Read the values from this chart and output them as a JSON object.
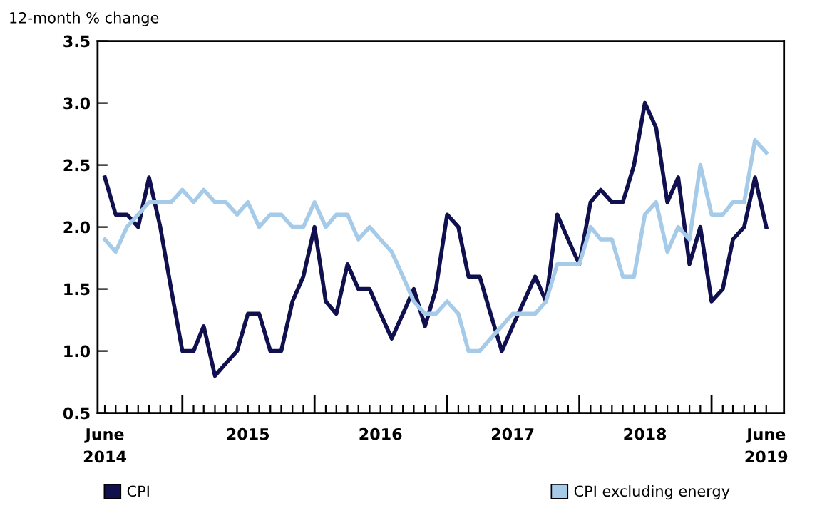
{
  "chart_data": {
    "type": "line",
    "ylabel": "12-month % change",
    "x": [
      "2014-06",
      "2014-07",
      "2014-08",
      "2014-09",
      "2014-10",
      "2014-11",
      "2014-12",
      "2015-01",
      "2015-02",
      "2015-03",
      "2015-04",
      "2015-05",
      "2015-06",
      "2015-07",
      "2015-08",
      "2015-09",
      "2015-10",
      "2015-11",
      "2015-12",
      "2016-01",
      "2016-02",
      "2016-03",
      "2016-04",
      "2016-05",
      "2016-06",
      "2016-07",
      "2016-08",
      "2016-09",
      "2016-10",
      "2016-11",
      "2016-12",
      "2017-01",
      "2017-02",
      "2017-03",
      "2017-04",
      "2017-05",
      "2017-06",
      "2017-07",
      "2017-08",
      "2017-09",
      "2017-10",
      "2017-11",
      "2017-12",
      "2018-01",
      "2018-02",
      "2018-03",
      "2018-04",
      "2018-05",
      "2018-06",
      "2018-07",
      "2018-08",
      "2018-09",
      "2018-10",
      "2018-11",
      "2018-12",
      "2019-01",
      "2019-02",
      "2019-03",
      "2019-04",
      "2019-05",
      "2019-06"
    ],
    "series": [
      {
        "name": "CPI",
        "color": "#10104f",
        "values": [
          2.4,
          2.1,
          2.1,
          2.0,
          2.4,
          2.0,
          1.5,
          1.0,
          1.0,
          1.2,
          0.8,
          0.9,
          1.0,
          1.3,
          1.3,
          1.0,
          1.0,
          1.4,
          1.6,
          2.0,
          1.4,
          1.3,
          1.7,
          1.5,
          1.5,
          1.3,
          1.1,
          1.3,
          1.5,
          1.2,
          1.5,
          2.1,
          2.0,
          1.6,
          1.6,
          1.3,
          1.0,
          1.2,
          1.4,
          1.6,
          1.4,
          2.1,
          1.9,
          1.7,
          2.2,
          2.3,
          2.2,
          2.2,
          2.5,
          3.0,
          2.8,
          2.2,
          2.4,
          1.7,
          2.0,
          1.4,
          1.5,
          1.9,
          2.0,
          2.4,
          2.0
        ]
      },
      {
        "name": "CPI excluding energy",
        "color": "#a6cbe8",
        "values": [
          1.9,
          1.8,
          2.0,
          2.1,
          2.2,
          2.2,
          2.2,
          2.3,
          2.2,
          2.3,
          2.2,
          2.2,
          2.1,
          2.2,
          2.0,
          2.1,
          2.1,
          2.0,
          2.0,
          2.2,
          2.0,
          2.1,
          2.1,
          1.9,
          2.0,
          1.9,
          1.8,
          1.6,
          1.4,
          1.3,
          1.3,
          1.4,
          1.3,
          1.0,
          1.0,
          1.1,
          1.2,
          1.3,
          1.3,
          1.3,
          1.4,
          1.7,
          1.7,
          1.7,
          2.0,
          1.9,
          1.9,
          1.6,
          1.6,
          2.1,
          2.2,
          1.8,
          2.0,
          1.9,
          2.5,
          2.1,
          2.1,
          2.2,
          2.2,
          2.7,
          2.6
        ]
      }
    ],
    "xlim": [
      "2014-05-12",
      "2019-07-20"
    ],
    "xticks": [
      {
        "value": "2014-06",
        "label": "June\n2014"
      },
      {
        "value": "2015-01",
        "label": null
      },
      {
        "value": "2015-07",
        "label": "2015"
      },
      {
        "value": "2016-01",
        "label": null
      },
      {
        "value": "2016-07",
        "label": "2016"
      },
      {
        "value": "2017-01",
        "label": null
      },
      {
        "value": "2017-07",
        "label": "2017"
      },
      {
        "value": "2018-01",
        "label": null
      },
      {
        "value": "2018-07",
        "label": "2018"
      },
      {
        "value": "2019-01",
        "label": null
      },
      {
        "value": "2019-06",
        "label": "June\n2019"
      }
    ],
    "ylim": [
      0.5,
      3.5
    ],
    "yticks": [
      {
        "value": 0.5,
        "label": "0.5"
      },
      {
        "value": 1.0,
        "label": "1.0"
      },
      {
        "value": 1.5,
        "label": "1.5"
      },
      {
        "value": 2.0,
        "label": "2.0"
      },
      {
        "value": 2.5,
        "label": "2.5"
      },
      {
        "value": 3.0,
        "label": "3.0"
      },
      {
        "value": 3.5,
        "label": "3.5"
      }
    ],
    "grid": false,
    "legend": "bottom",
    "marker": "none",
    "line_style": "solid"
  }
}
